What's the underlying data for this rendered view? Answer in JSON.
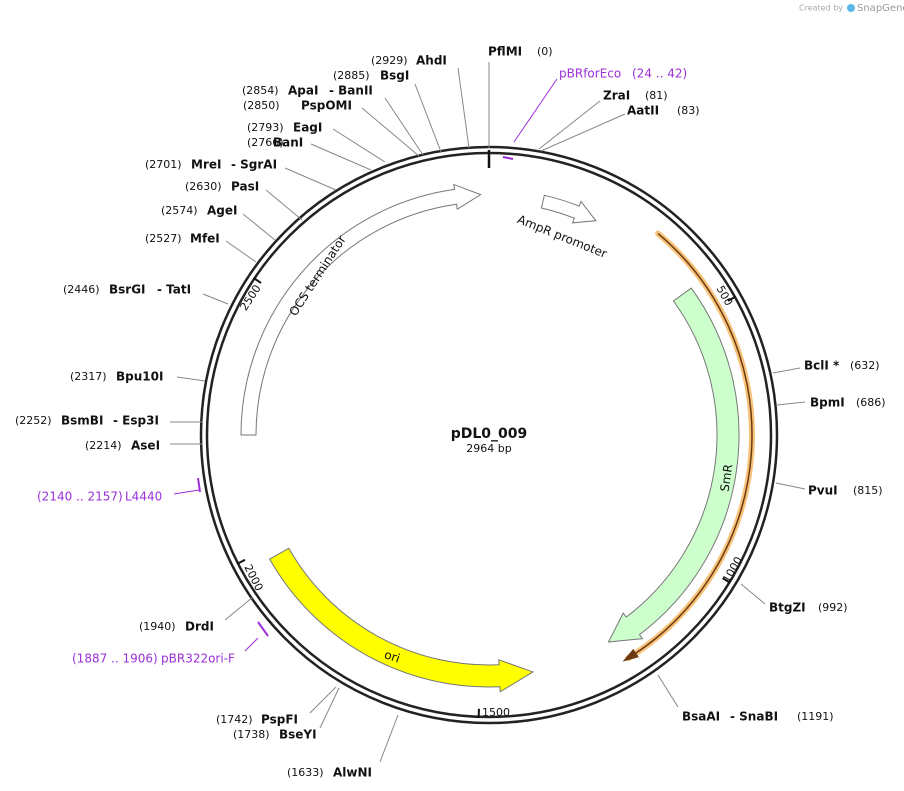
{
  "logo": {
    "prefix": "Created by",
    "brand": "SnapGene"
  },
  "plasmid": {
    "name": "pDL0_009",
    "length": "2964 bp"
  },
  "enzymes": [
    {
      "names": [
        "PflMI"
      ],
      "position": "(0)"
    },
    {
      "names": [
        "AhdI"
      ],
      "position": "(2929)"
    },
    {
      "names": [
        "ZraI"
      ],
      "position": "(81)"
    },
    {
      "names": [
        "AatII"
      ],
      "position": "(83)"
    },
    {
      "names": [
        "BsgI"
      ],
      "position": "(2885)"
    },
    {
      "names": [
        "ApaI",
        "- BanII"
      ],
      "position": "(2854)"
    },
    {
      "names": [
        "PspOMI"
      ],
      "position": "(2850)"
    },
    {
      "names": [
        "EagI"
      ],
      "position": "(2793)"
    },
    {
      "names": [
        "BanI"
      ],
      "position": "(2766)"
    },
    {
      "names": [
        "MreI",
        "- SgrAI"
      ],
      "position": "(2701)"
    },
    {
      "names": [
        "PasI"
      ],
      "position": "(2630)"
    },
    {
      "names": [
        "AgeI"
      ],
      "position": "(2574)"
    },
    {
      "names": [
        "MfeI"
      ],
      "position": "(2527)"
    },
    {
      "names": [
        "BsrGI",
        "- TatI"
      ],
      "position": "(2446)"
    },
    {
      "names": [
        "Bpu10I"
      ],
      "position": "(2317)"
    },
    {
      "names": [
        "BsmBI",
        "- Esp3I"
      ],
      "position": "(2252)"
    },
    {
      "names": [
        "AseI"
      ],
      "position": "(2214)"
    },
    {
      "names": [
        "BclI *"
      ],
      "position": "(632)"
    },
    {
      "names": [
        "BpmI"
      ],
      "position": "(686)"
    },
    {
      "names": [
        "PvuI"
      ],
      "position": "(815)"
    },
    {
      "names": [
        "BtgZI"
      ],
      "position": "(992)"
    },
    {
      "names": [
        "BsaAI",
        "- SnaBI"
      ],
      "position": "(1191)"
    },
    {
      "names": [
        "AlwNI"
      ],
      "position": "(1633)"
    },
    {
      "names": [
        "PspFI"
      ],
      "position": "(1742)"
    },
    {
      "names": [
        "BseYI"
      ],
      "position": "(1738)"
    },
    {
      "names": [
        "DrdI"
      ],
      "position": "(1940)"
    }
  ],
  "primers": [
    {
      "name": "pBRforEco",
      "range": "(24 .. 42)"
    },
    {
      "name": "L4440",
      "range": "(2140 .. 2157)"
    },
    {
      "name": "pBR322ori-F",
      "range": "(1887 .. 1906)"
    }
  ],
  "features": [
    {
      "name": "OCS terminator"
    },
    {
      "name": "AmpR promoter"
    },
    {
      "name": "SmR"
    },
    {
      "name": "ori"
    }
  ],
  "ticks": [
    500,
    1000,
    1500,
    2000,
    2500
  ]
}
